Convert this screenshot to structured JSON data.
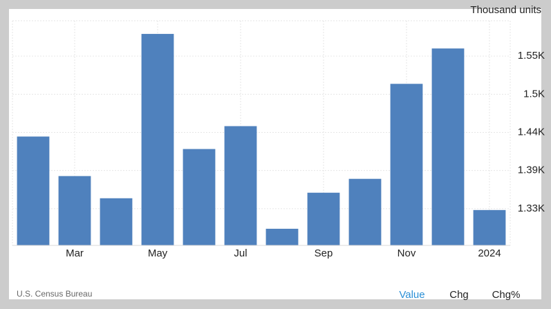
{
  "chart_data": {
    "type": "bar",
    "y_label": "Thousand units",
    "categories": [
      null,
      "Mar",
      null,
      "May",
      null,
      "Jul",
      null,
      "Sep",
      null,
      "Nov",
      null,
      "2024"
    ],
    "values": [
      1434,
      1377,
      1345,
      1582,
      1416,
      1449,
      1301,
      1353,
      1373,
      1510,
      1561,
      1328
    ],
    "color": "#4f81bd",
    "ylim": [
      1277,
      1601
    ],
    "yticks": [
      {
        "value": 1330,
        "label": "1.33K"
      },
      {
        "value": 1385,
        "label": "1.39K"
      },
      {
        "value": 1440,
        "label": "1.44K"
      },
      {
        "value": 1495,
        "label": "1.5K"
      },
      {
        "value": 1550,
        "label": "1.55K"
      }
    ],
    "grid": true,
    "y_axis_side": "right"
  },
  "source": "U.S. Census Bureau",
  "tabs": [
    "Value",
    "Chg",
    "Chg%"
  ]
}
